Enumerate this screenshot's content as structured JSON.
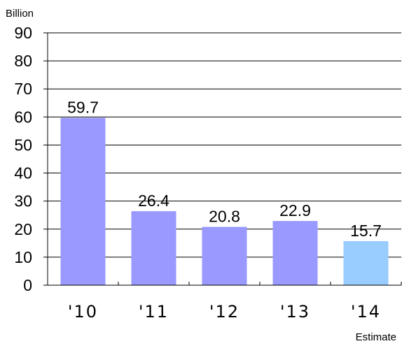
{
  "chart_data": {
    "type": "bar",
    "categories": [
      "'10",
      "'11",
      "'12",
      "'13",
      "'14"
    ],
    "values": [
      59.7,
      26.4,
      20.8,
      22.9,
      15.7
    ],
    "data_labels": [
      "59.7",
      "26.4",
      "20.8",
      "22.9",
      "15.7"
    ],
    "ylabel": "Billion",
    "ylim": [
      0,
      90
    ],
    "yticks": [
      0,
      10,
      20,
      30,
      40,
      50,
      60,
      70,
      80,
      90
    ],
    "grid": true,
    "legend": "none",
    "annotation": "Estimate",
    "bar_colors": [
      "#9999ff",
      "#9999ff",
      "#9999ff",
      "#9999ff",
      "#99ccff"
    ]
  }
}
